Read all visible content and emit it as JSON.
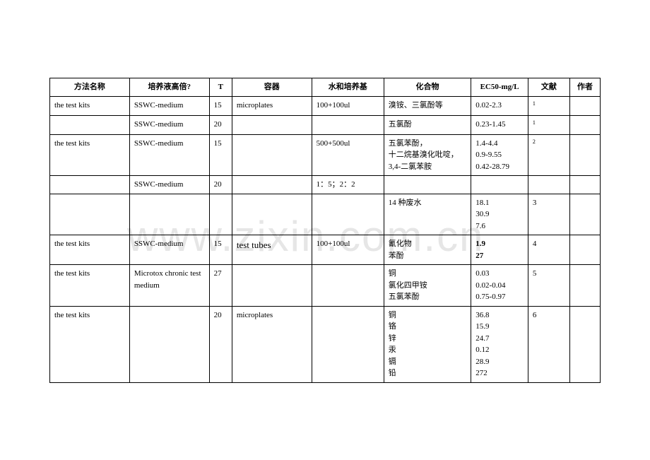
{
  "watermark": "www.zixin.com.cn",
  "table": {
    "headers": {
      "method": "方法名称",
      "medium": "培养液高倍?",
      "t": "T",
      "vessel": "容器",
      "water": "水和培养基",
      "chemical": "化合物",
      "ec50": "EC50-mg/L",
      "ref": "文献",
      "author": "作者"
    },
    "rows": [
      {
        "method": "the test kits",
        "medium": "SSWC-medium",
        "t": "15",
        "vessel": "microplates",
        "water": "100+100ul",
        "chemical": "溴铵、三氯酚等",
        "ec50": "0.02-2.3",
        "ref": "1",
        "ref_sup": true,
        "author": ""
      },
      {
        "method": "",
        "medium": "SSWC-medium",
        "t": "20",
        "vessel": "",
        "water": "",
        "chemical": "五氯酚",
        "ec50": "0.23-1.45",
        "ref": "1",
        "ref_sup": true,
        "author": ""
      },
      {
        "method": "the test kits",
        "medium": "SSWC-medium",
        "t": "15",
        "vessel": "",
        "water": "500+500ul",
        "chemical": "五氯苯酚，\n十二烷基溴化吡啶，\n3,4-二氯苯胺",
        "ec50": "1.4-4.4\n0.9-9.55\n0.42-28.79",
        "ref": "2",
        "ref_sup": true,
        "author": ""
      },
      {
        "method": "",
        "medium": "SSWC-medium",
        "t": "20",
        "vessel": "",
        "water": "1：5；2：2",
        "chemical": "",
        "ec50": "",
        "ref": "",
        "author": ""
      },
      {
        "method": "",
        "medium": "",
        "t": "",
        "vessel": "",
        "water": "",
        "chemical": "14 种废水",
        "ec50": "18.1\n30.9\n7.6",
        "ref": "3",
        "author": ""
      },
      {
        "method": "the test kits",
        "medium": "SSWC-medium",
        "t": "15",
        "vessel": "test tubes",
        "vessel_class": "tube",
        "water": "100+100ul",
        "chemical": "氰化物\n苯酚",
        "ec50": "1.9\n27",
        "ec50_bold": true,
        "ref": "4",
        "author": ""
      },
      {
        "method": "the test kits",
        "medium": "Microtox chronic test medium",
        "t": "27",
        "vessel": "",
        "water": "",
        "chemical": "铜\n氯化四甲铵\n五氯苯酚",
        "ec50": "0.03\n0.02-0.04\n0.75-0.97",
        "ref": "5",
        "author": ""
      },
      {
        "method": "the test kits",
        "medium": "",
        "t": "20",
        "vessel": "microplates",
        "water": "",
        "chemical": "铜\n铬\n锌\n汞\n镉\n铅",
        "ec50": "36.8\n15.9\n24.7\n0.12\n28.9\n272",
        "ref": "6",
        "author": ""
      }
    ]
  }
}
